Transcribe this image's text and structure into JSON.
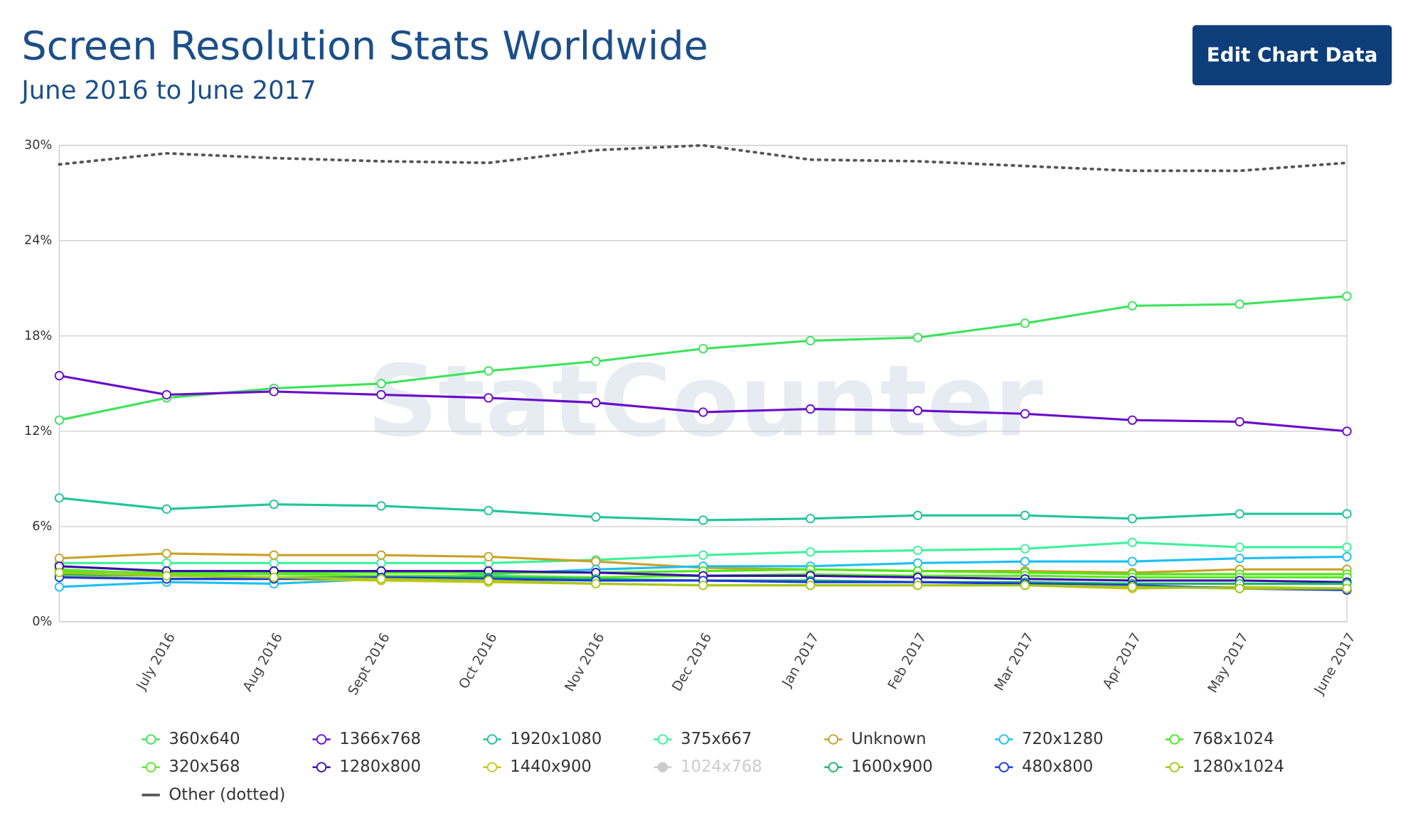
{
  "chart_data": {
    "type": "line",
    "title": "Screen Resolution Stats Worldwide",
    "subtitle": "June 2016 to June 2017",
    "button": "Edit Chart Data",
    "watermark": "StatCounter",
    "categories": [
      null,
      "July 2016",
      "Aug 2016",
      "Sept 2016",
      "Oct 2016",
      "Nov 2016",
      "Dec 2016",
      "Jan 2017",
      "Feb 2017",
      "Mar 2017",
      "Apr 2017",
      "May 2017",
      "June 2017"
    ],
    "ylim": [
      0,
      30
    ],
    "yticks": [
      {
        "value": 0,
        "label": "0%"
      },
      {
        "value": 6,
        "label": "6%"
      },
      {
        "value": 12,
        "label": "12%"
      },
      {
        "value": 18,
        "label": "18%"
      },
      {
        "value": 24,
        "label": "24%"
      },
      {
        "value": 30,
        "label": "30%"
      }
    ],
    "grid": true,
    "legend": "bottom",
    "series": [
      {
        "name": "360x640",
        "color": "#3ee35c",
        "values": [
          12.7,
          14.1,
          14.7,
          15.0,
          15.8,
          16.4,
          17.2,
          17.7,
          17.9,
          18.8,
          19.9,
          20.0,
          20.5
        ]
      },
      {
        "name": "1366x768",
        "color": "#6a0dc9",
        "values": [
          15.5,
          14.3,
          14.5,
          14.3,
          14.1,
          13.8,
          13.2,
          13.4,
          13.3,
          13.1,
          12.7,
          12.6,
          12.0
        ]
      },
      {
        "name": "1920x1080",
        "color": "#20c49a",
        "values": [
          7.8,
          7.1,
          7.4,
          7.3,
          7.0,
          6.6,
          6.4,
          6.5,
          6.7,
          6.7,
          6.5,
          6.8,
          6.8
        ]
      },
      {
        "name": "375x667",
        "color": "#3df29a",
        "values": [
          3.7,
          3.7,
          3.7,
          3.7,
          3.7,
          3.9,
          4.2,
          4.4,
          4.5,
          4.6,
          5.0,
          4.7,
          4.7
        ]
      },
      {
        "name": "Unknown",
        "color": "#c9a227",
        "values": [
          4.0,
          4.3,
          4.2,
          4.2,
          4.1,
          3.8,
          3.4,
          3.3,
          3.2,
          3.2,
          3.1,
          3.3,
          3.3
        ]
      },
      {
        "name": "720x1280",
        "color": "#1ec0f0",
        "values": [
          2.2,
          2.5,
          2.4,
          2.7,
          3.0,
          3.3,
          3.5,
          3.5,
          3.7,
          3.8,
          3.8,
          4.0,
          4.1
        ]
      },
      {
        "name": "768x1024",
        "color": "#4de81a",
        "values": [
          3.2,
          3.1,
          3.1,
          3.1,
          3.1,
          3.1,
          3.2,
          3.3,
          3.2,
          3.1,
          3.0,
          3.0,
          3.0
        ]
      },
      {
        "name": "320x568",
        "color": "#5ee828",
        "values": [
          3.3,
          3.0,
          3.0,
          2.9,
          2.9,
          2.8,
          2.9,
          3.0,
          2.9,
          2.9,
          2.8,
          2.8,
          2.8
        ]
      },
      {
        "name": "1280x800",
        "color": "#3a0ea8",
        "values": [
          3.5,
          3.2,
          3.2,
          3.2,
          3.2,
          3.1,
          2.9,
          2.9,
          2.8,
          2.7,
          2.6,
          2.6,
          2.5
        ]
      },
      {
        "name": "1440x900",
        "color": "#c8c81a",
        "values": [
          2.9,
          2.7,
          2.7,
          2.6,
          2.5,
          2.4,
          2.3,
          2.3,
          2.3,
          2.3,
          2.1,
          2.2,
          2.1
        ]
      },
      {
        "name": "1024x768",
        "color": "#cccccc",
        "visible": false,
        "values": [
          null,
          null,
          null,
          null,
          null,
          null,
          null,
          null,
          null,
          null,
          null,
          null,
          null
        ]
      },
      {
        "name": "1600x900",
        "color": "#18b868",
        "values": [
          3.0,
          2.9,
          2.8,
          2.8,
          2.8,
          2.7,
          2.6,
          2.6,
          2.5,
          2.5,
          2.4,
          2.4,
          2.4
        ]
      },
      {
        "name": "480x800",
        "color": "#1a3ad8",
        "values": [
          2.8,
          2.7,
          2.7,
          2.8,
          2.7,
          2.6,
          2.6,
          2.5,
          2.5,
          2.4,
          2.3,
          2.1,
          2.0
        ]
      },
      {
        "name": "1280x1024",
        "color": "#a6c81a",
        "values": [
          3.1,
          2.9,
          2.8,
          2.7,
          2.6,
          2.4,
          2.3,
          2.3,
          2.3,
          2.3,
          2.2,
          2.1,
          2.1
        ]
      },
      {
        "name": "Other (dotted)",
        "color": "#555555",
        "dotted": true,
        "values": [
          28.8,
          29.5,
          29.2,
          29.0,
          28.9,
          29.7,
          30.0,
          29.1,
          29.0,
          28.7,
          28.4,
          28.4,
          28.9
        ]
      }
    ]
  }
}
